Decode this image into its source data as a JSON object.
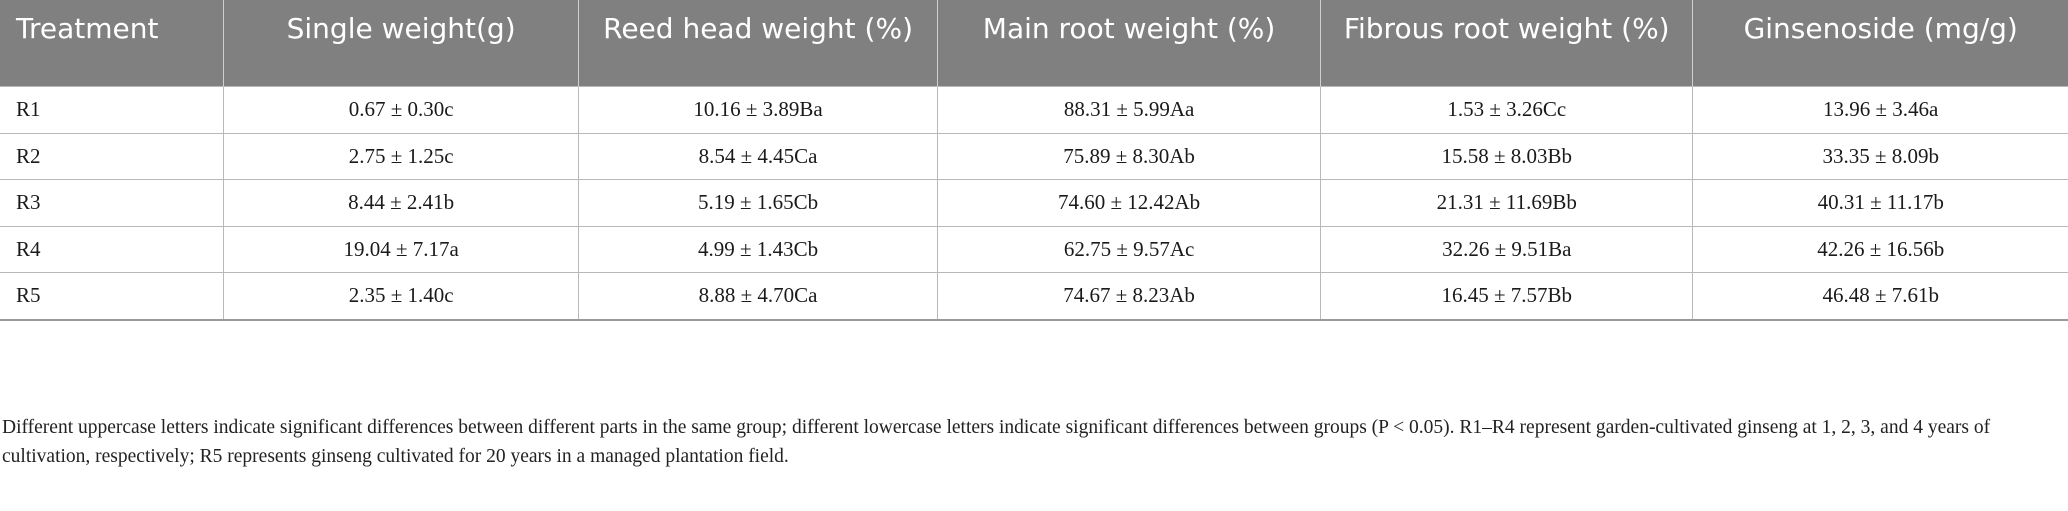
{
  "table": {
    "headers": [
      "Treatment",
      "Single weight(g)",
      "Reed head weight (%)",
      "Main root weight (%)",
      "Fibrous root weight (%)",
      "Ginsenoside (mg/g)"
    ],
    "rows": [
      [
        "R1",
        "0.67 ± 0.30c",
        "10.16 ± 3.89Ba",
        "88.31 ± 5.99Aa",
        "1.53 ± 3.26Cc",
        "13.96 ± 3.46a"
      ],
      [
        "R2",
        "2.75 ± 1.25c",
        "8.54 ± 4.45Ca",
        "75.89 ± 8.30Ab",
        "15.58 ± 8.03Bb",
        "33.35 ± 8.09b"
      ],
      [
        "R3",
        "8.44 ± 2.41b",
        "5.19 ± 1.65Cb",
        "74.60 ± 12.42Ab",
        "21.31 ± 11.69Bb",
        "40.31 ± 11.17b"
      ],
      [
        "R4",
        "19.04 ± 7.17a",
        "4.99 ± 1.43Cb",
        "62.75 ± 9.57Ac",
        "32.26 ± 9.51Ba",
        "42.26 ± 16.56b"
      ],
      [
        "R5",
        "2.35 ± 1.40c",
        "8.88 ± 4.70Ca",
        "74.67 ± 8.23Ab",
        "16.45 ± 7.57Bb",
        "46.48 ± 7.61b"
      ]
    ]
  },
  "footnote": "Different uppercase letters indicate significant differences between different parts in the same group; different lowercase letters indicate significant differences between groups (P < 0.05). R1–R4 represent garden-cultivated ginseng at 1, 2, 3, and 4 years of cultivation, respectively; R5 represents ginseng cultivated for 20 years in a managed plantation field.",
  "colors": {
    "header_bg": "#808080",
    "header_text": "#ffffff",
    "grid": "#b8b8b8"
  }
}
